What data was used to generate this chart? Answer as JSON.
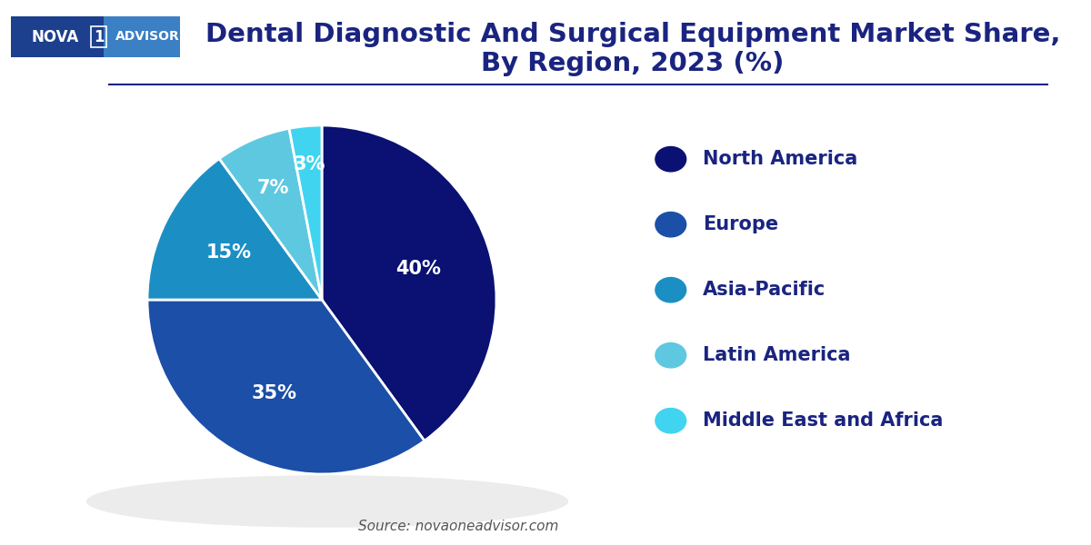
{
  "title": "Dental Diagnostic And Surgical Equipment Market Share,\nBy Region, 2023 (%)",
  "slices": [
    40,
    35,
    15,
    7,
    3
  ],
  "labels": [
    "North America",
    "Europe",
    "Asia-Pacific",
    "Latin America",
    "Middle East and Africa"
  ],
  "pct_labels": [
    "40%",
    "35%",
    "15%",
    "7%",
    "3%"
  ],
  "colors": [
    "#0a1172",
    "#1b4fa8",
    "#1b8fc4",
    "#5ec8e0",
    "#40d4f0"
  ],
  "startangle": 90,
  "source_text": "Source: novaoneadvisor.com",
  "background_color": "#ffffff",
  "title_fontsize": 21,
  "legend_fontsize": 15,
  "pct_fontsize": 15,
  "legend_text_color": "#1a2480",
  "title_color": "#1a2480"
}
